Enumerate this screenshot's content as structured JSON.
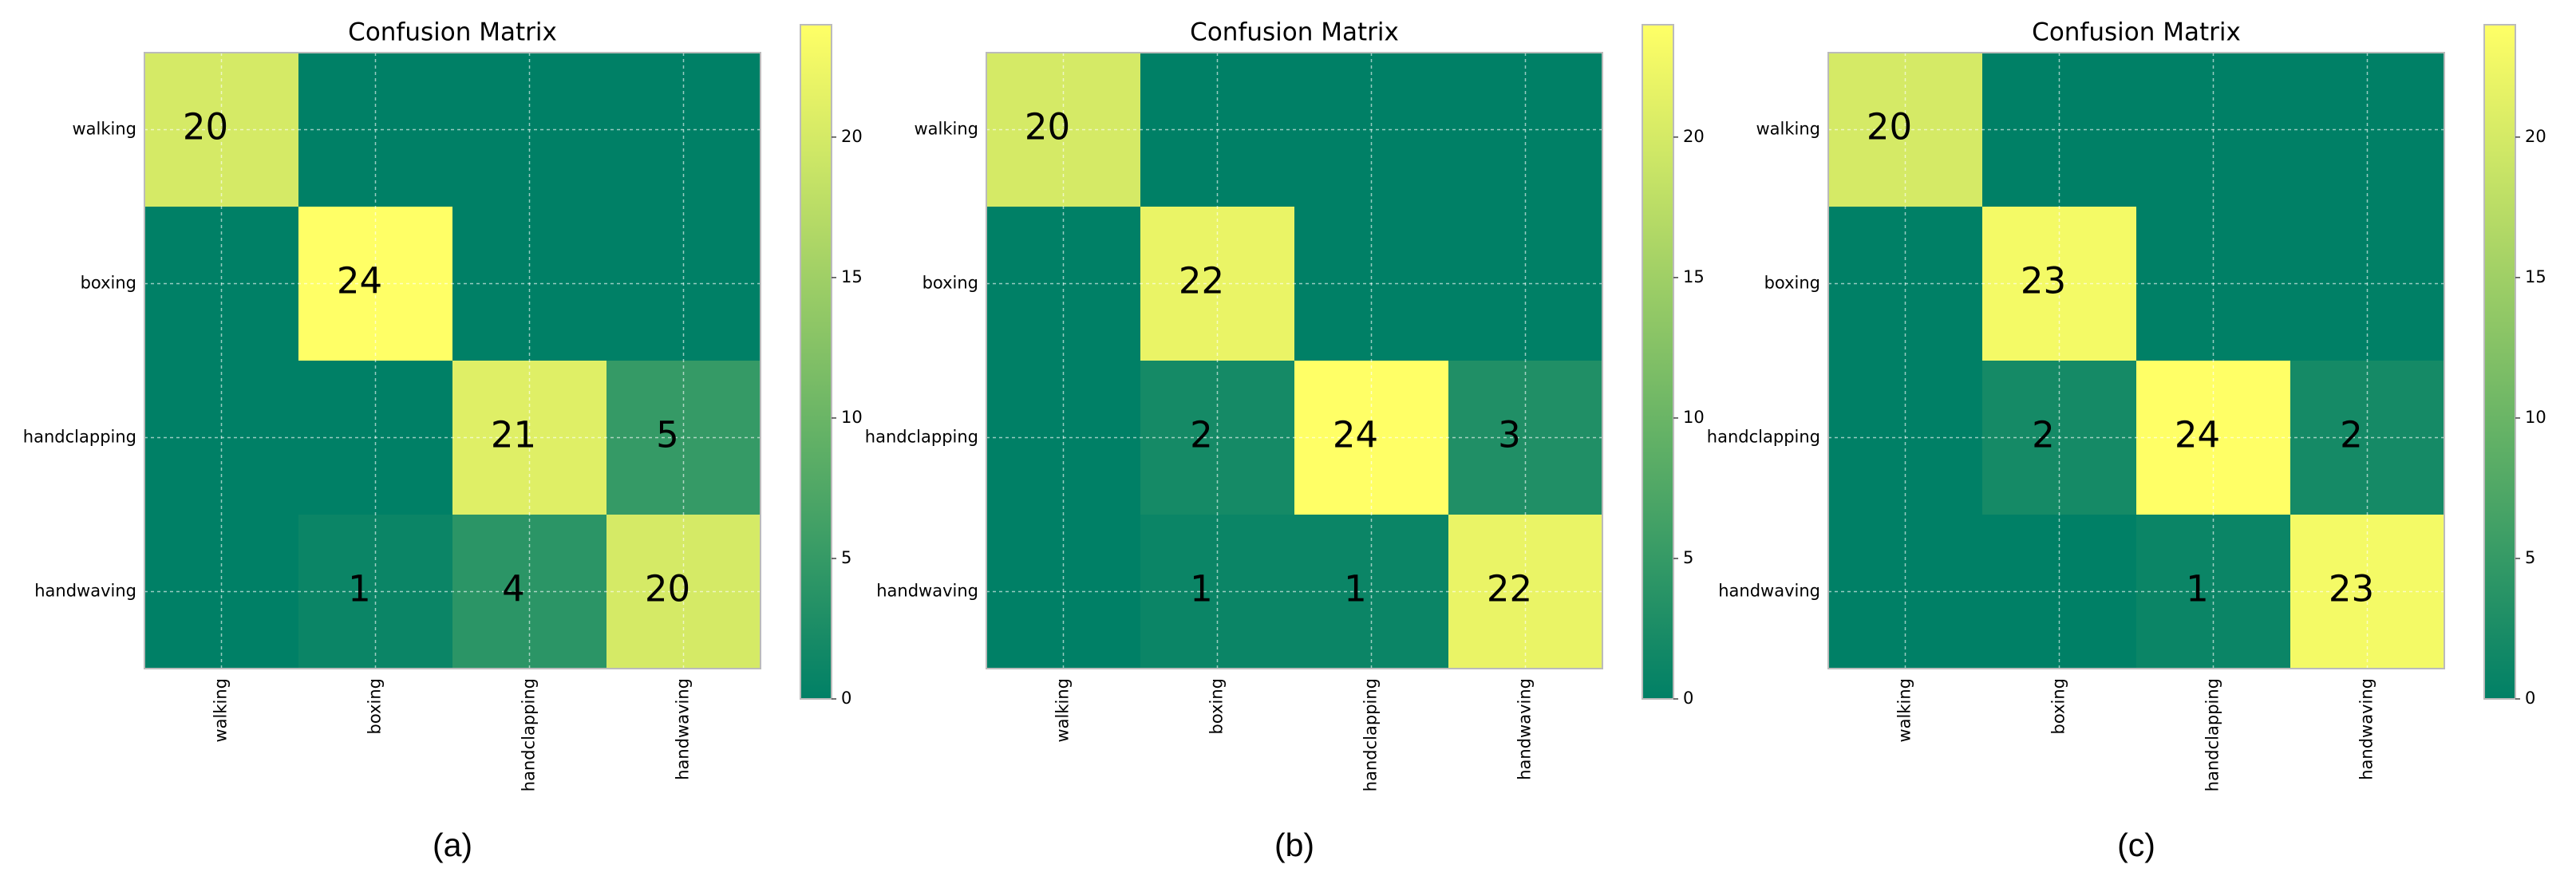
{
  "chart_data": [
    {
      "type": "heatmap",
      "title": "Confusion Matrix",
      "caption": "(a)",
      "x_categories": [
        "walking",
        "boxing",
        "handclapping",
        "handwaving"
      ],
      "y_categories": [
        "walking",
        "boxing",
        "handclapping",
        "handwaving"
      ],
      "values": [
        [
          20,
          0,
          0,
          0
        ],
        [
          0,
          24,
          0,
          0
        ],
        [
          0,
          0,
          21,
          5
        ],
        [
          0,
          1,
          4,
          20
        ]
      ],
      "value_labels": [
        [
          "20",
          null,
          null,
          null
        ],
        [
          null,
          "24",
          null,
          null
        ],
        [
          null,
          null,
          "21",
          "5"
        ],
        [
          null,
          "1",
          "4",
          "20"
        ]
      ],
      "colormap": "summer",
      "clim": [
        0,
        24
      ],
      "cticks": [
        0,
        5,
        10,
        15,
        20
      ],
      "grid": true
    },
    {
      "type": "heatmap",
      "title": "Confusion Matrix",
      "caption": "(b)",
      "x_categories": [
        "walking",
        "boxing",
        "handclapping",
        "handwaving"
      ],
      "y_categories": [
        "walking",
        "boxing",
        "handclapping",
        "handwaving"
      ],
      "values": [
        [
          20,
          0,
          0,
          0
        ],
        [
          0,
          22,
          0,
          0
        ],
        [
          0,
          2,
          24,
          3
        ],
        [
          0,
          1,
          1,
          22
        ]
      ],
      "value_labels": [
        [
          "20",
          null,
          null,
          null
        ],
        [
          null,
          "22",
          null,
          null
        ],
        [
          null,
          "2",
          "24",
          "3"
        ],
        [
          null,
          "1",
          "1",
          "22"
        ]
      ],
      "colormap": "summer",
      "clim": [
        0,
        24
      ],
      "cticks": [
        0,
        5,
        10,
        15,
        20
      ],
      "grid": true
    },
    {
      "type": "heatmap",
      "title": "Confusion Matrix",
      "caption": "(c)",
      "x_categories": [
        "walking",
        "boxing",
        "handclapping",
        "handwaving"
      ],
      "y_categories": [
        "walking",
        "boxing",
        "handclapping",
        "handwaving"
      ],
      "values": [
        [
          20,
          0,
          0,
          0
        ],
        [
          0,
          23,
          0,
          0
        ],
        [
          0,
          2,
          24,
          2
        ],
        [
          0,
          0,
          1,
          23
        ]
      ],
      "value_labels": [
        [
          "20",
          null,
          null,
          null
        ],
        [
          null,
          "23",
          null,
          null
        ],
        [
          null,
          "2",
          "24",
          "2"
        ],
        [
          null,
          null,
          "1",
          "23"
        ]
      ],
      "colormap": "summer",
      "clim": [
        0,
        24
      ],
      "cticks": [
        0,
        5,
        10,
        15,
        20
      ],
      "grid": true
    }
  ]
}
